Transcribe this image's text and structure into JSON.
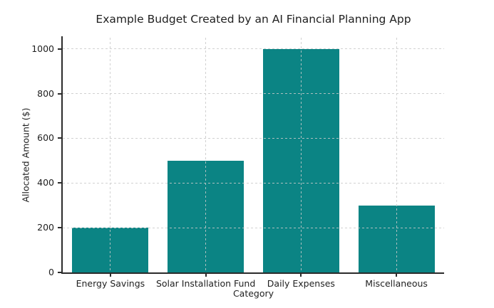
{
  "chart_data": {
    "type": "bar",
    "title": "Example Budget Created by an AI Financial Planning App",
    "xlabel": "Category",
    "ylabel": "Allocated Amount ($)",
    "categories": [
      "Energy Savings",
      "Solar Installation Fund",
      "Daily Expenses",
      "Miscellaneous"
    ],
    "values": [
      200,
      500,
      1000,
      300
    ],
    "yticks": [
      0,
      200,
      400,
      600,
      800,
      1000
    ],
    "ylim": [
      0,
      1050
    ],
    "bar_width_fraction": 0.8,
    "grid": {
      "style": "dashed",
      "axes": "both",
      "drawn_above_bars": true
    },
    "legend": "none",
    "colors": {
      "bar": "#0b8484",
      "grid": "#c9c9c9",
      "spine": "#2b2b2b",
      "text": "#1f1f1f",
      "background": "#ffffff"
    }
  }
}
